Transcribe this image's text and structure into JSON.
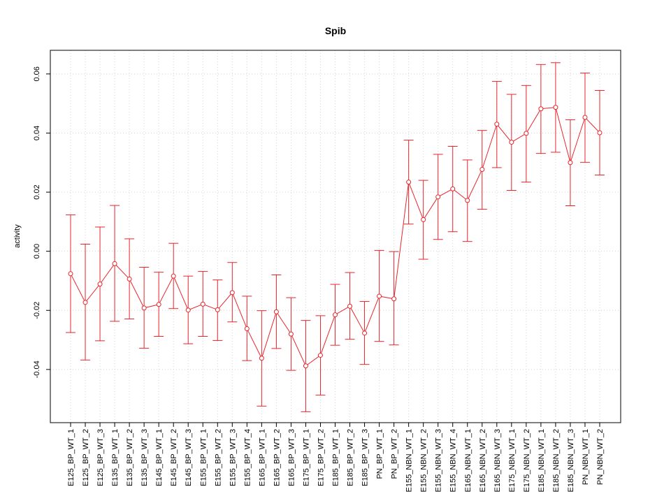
{
  "chart_data": {
    "type": "line",
    "title": "Spib",
    "xlabel": "",
    "ylabel": "activity",
    "ylim": [
      -0.058,
      0.068
    ],
    "yticks": [
      -0.04,
      -0.02,
      0.0,
      0.02,
      0.04,
      0.06
    ],
    "ytick_labels": [
      "-0.04",
      "-0.02",
      "0.00",
      "0.02",
      "0.04",
      "0.06"
    ],
    "grid": true,
    "color": "#e8252b",
    "categories": [
      "E125_BP_WT_1",
      "E125_BP_WT_2",
      "E125_BP_WT_3",
      "E135_BP_WT_1",
      "E135_BP_WT_2",
      "E135_BP_WT_3",
      "E145_BP_WT_1",
      "E145_BP_WT_2",
      "E145_BP_WT_3",
      "E155_BP_WT_1",
      "E155_BP_WT_2",
      "E155_BP_WT_3",
      "E155_BP_WT_4",
      "E165_BP_WT_1",
      "E165_BP_WT_2",
      "E165_BP_WT_3",
      "E175_BP_WT_1",
      "E175_BP_WT_2",
      "E185_BP_WT_1",
      "E185_BP_WT_2",
      "E185_BP_WT_3",
      "PN_BP_WT_1",
      "PN_BP_WT_2",
      "E155_NBN_WT_1",
      "E155_NBN_WT_2",
      "E155_NBN_WT_3",
      "E155_NBN_WT_4",
      "E165_NBN_WT_1",
      "E165_NBN_WT_2",
      "E165_NBN_WT_3",
      "E175_NBN_WT_1",
      "E175_NBN_WT_2",
      "E185_NBN_WT_1",
      "E185_NBN_WT_2",
      "E185_NBN_WT_3",
      "PN_NBN_WT_1",
      "PN_NBN_WT_2"
    ],
    "values": [
      -0.0076,
      -0.0173,
      -0.0111,
      -0.0042,
      -0.0094,
      -0.0192,
      -0.018,
      -0.0084,
      -0.0199,
      -0.0179,
      -0.0198,
      -0.014,
      -0.0262,
      -0.0362,
      -0.0205,
      -0.028,
      -0.0388,
      -0.0352,
      -0.0215,
      -0.0186,
      -0.0277,
      -0.0152,
      -0.0161,
      0.0234,
      0.0107,
      0.0184,
      0.0211,
      0.0172,
      0.0277,
      0.043,
      0.0369,
      0.0399,
      0.0482,
      0.0487,
      0.03,
      0.0453,
      0.0401
    ],
    "upper": [
      0.0123,
      0.0024,
      0.0082,
      0.0155,
      0.0042,
      -0.0054,
      -0.0071,
      0.0027,
      -0.0084,
      -0.0068,
      -0.0097,
      -0.0038,
      -0.0152,
      -0.0201,
      -0.008,
      -0.0157,
      -0.0234,
      -0.0218,
      -0.0112,
      -0.0072,
      -0.017,
      0.0003,
      -0.0001,
      0.0376,
      0.024,
      0.0328,
      0.0355,
      0.0309,
      0.0409,
      0.0575,
      0.0531,
      0.0561,
      0.0632,
      0.0638,
      0.0445,
      0.0603,
      0.0544
    ],
    "lower": [
      -0.0275,
      -0.0368,
      -0.0303,
      -0.0237,
      -0.0229,
      -0.0328,
      -0.0288,
      -0.0194,
      -0.0313,
      -0.0288,
      -0.0302,
      -0.0239,
      -0.037,
      -0.0524,
      -0.0329,
      -0.0403,
      -0.0543,
      -0.0487,
      -0.0318,
      -0.0298,
      -0.0383,
      -0.0305,
      -0.0317,
      0.0092,
      -0.0027,
      0.004,
      0.0066,
      0.0033,
      0.0142,
      0.0283,
      0.0206,
      0.0234,
      0.0331,
      0.0335,
      0.0154,
      0.0301,
      0.0258
    ]
  }
}
